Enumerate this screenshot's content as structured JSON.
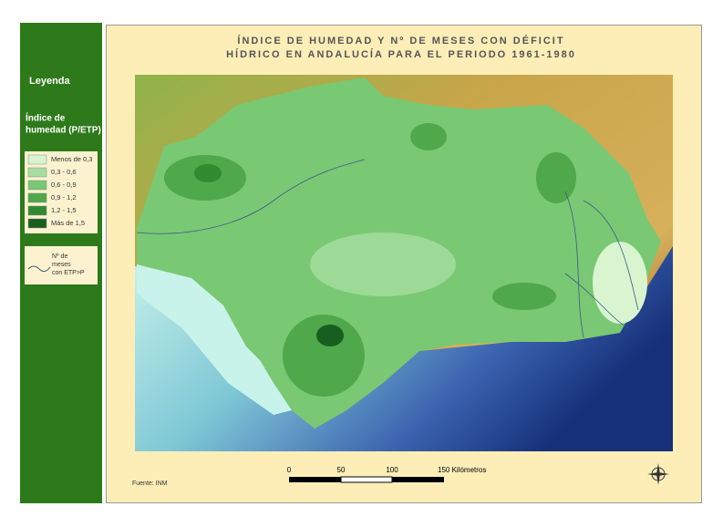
{
  "header": {
    "title_lines": [
      "ÍNDICE DE HUMEDAD Y Nº DE MESES CON DÉFICIT",
      "HÍDRICO EN ANDALUCÍA PARA EL PERIODO 1961-1980"
    ]
  },
  "legend": {
    "heading": "Leyenda",
    "index_title_lines": [
      "Índice de",
      "humedad (P/ETP)"
    ],
    "classes": [
      {
        "label": "Menos de 0,3",
        "color": "#d8f5d0"
      },
      {
        "label": "0,3 - 0,6",
        "color": "#a6dea0"
      },
      {
        "label": "0,6 - 0,9",
        "color": "#79c873"
      },
      {
        "label": "0,9 - 1,2",
        "color": "#4fa84a"
      },
      {
        "label": "1,2 - 1,5",
        "color": "#2f8a30"
      },
      {
        "label": "Más de 1,5",
        "color": "#175f1e"
      }
    ],
    "isoline_label_lines": [
      "Nº de",
      "meses",
      "con ETP>P"
    ]
  },
  "scale": {
    "labels": [
      "0",
      "50",
      "100",
      "150 Kilómetros"
    ]
  },
  "source": "Fuente: INM"
}
